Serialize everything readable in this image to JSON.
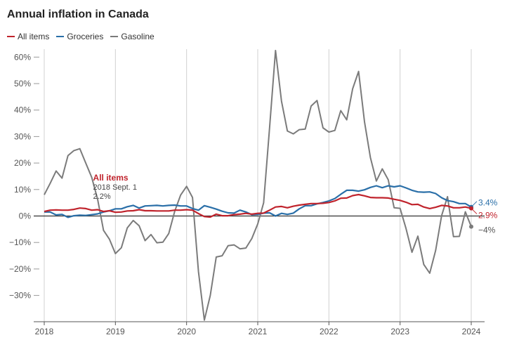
{
  "title": "Annual inflation in Canada",
  "legend": [
    {
      "label": "All items",
      "color": "#c0232c"
    },
    {
      "label": "Groceries",
      "color": "#2a6fa8"
    },
    {
      "label": "Gasoline",
      "color": "#7b7b7b"
    }
  ],
  "annotation": {
    "title": "All items",
    "date": "2018 Sept. 1",
    "value": "2.2%"
  },
  "end_labels": {
    "groceries": "3.4%",
    "all_items": "2.9%",
    "gasoline": "−4%"
  },
  "chart_data": {
    "type": "line",
    "title": "Annual inflation in Canada",
    "x_start": "2018-01",
    "x_end": "2024-01",
    "x_tick_labels": [
      "2018",
      "2019",
      "2020",
      "2021",
      "2022",
      "2023",
      "2024"
    ],
    "y_tick_values": [
      60,
      50,
      40,
      30,
      20,
      10,
      0,
      -10,
      -20,
      -30
    ],
    "y_tick_labels": [
      "60%",
      "50%",
      "40%",
      "30%",
      "20%",
      "10%",
      "0%",
      "−10%",
      "−20%",
      "−30%"
    ],
    "ylim": [
      -40,
      63
    ],
    "grid": "vertical gridlines at years, horizontal zero line",
    "legend_position": "top-left",
    "series": [
      {
        "name": "All items",
        "color": "#c0232c",
        "values": [
          1.7,
          2.2,
          2.3,
          2.2,
          2.2,
          2.5,
          3.0,
          2.8,
          2.2,
          2.4,
          1.7,
          2.0,
          1.4,
          1.5,
          1.9,
          2.0,
          2.4,
          2.0,
          2.0,
          1.9,
          1.9,
          1.9,
          2.2,
          2.2,
          2.4,
          2.2,
          0.9,
          -0.2,
          -0.4,
          0.7,
          0.1,
          0.1,
          0.5,
          0.7,
          1.0,
          0.7,
          1.0,
          1.1,
          2.2,
          3.4,
          3.6,
          3.1,
          3.7,
          4.1,
          4.4,
          4.7,
          4.7,
          4.8,
          5.1,
          5.7,
          6.7,
          6.8,
          7.7,
          8.1,
          7.6,
          7.0,
          6.9,
          6.9,
          6.8,
          6.3,
          5.9,
          5.2,
          4.3,
          4.4,
          3.4,
          2.8,
          3.3,
          4.0,
          3.8,
          3.1,
          3.1,
          3.4,
          2.9
        ]
      },
      {
        "name": "Groceries",
        "color": "#2a6fa8",
        "values": [
          1.5,
          1.5,
          0.4,
          0.6,
          -0.5,
          0.1,
          0.3,
          0.2,
          0.5,
          0.8,
          1.5,
          2.0,
          2.7,
          2.7,
          3.5,
          4.0,
          3.0,
          3.8,
          3.9,
          4.0,
          3.8,
          4.0,
          4.1,
          3.8,
          3.8,
          2.8,
          2.2,
          3.9,
          3.3,
          2.6,
          1.8,
          1.2,
          1.1,
          2.2,
          1.5,
          0.5,
          0.6,
          1.1,
          1.2,
          0.0,
          1.0,
          0.6,
          1.1,
          2.7,
          3.9,
          3.9,
          4.6,
          5.1,
          5.7,
          6.6,
          8.2,
          9.7,
          9.7,
          9.4,
          9.9,
          10.8,
          11.4,
          10.7,
          11.4,
          11.0,
          11.4,
          10.6,
          9.7,
          9.1,
          9.0,
          9.1,
          8.5,
          6.9,
          5.8,
          5.4,
          4.7,
          4.7,
          3.4
        ]
      },
      {
        "name": "Gasoline",
        "color": "#7b7b7b",
        "values": [
          8.0,
          12.3,
          17.0,
          14.3,
          22.8,
          24.7,
          25.4,
          20.0,
          14.6,
          6.3,
          -5.4,
          -8.8,
          -14.2,
          -12.0,
          -4.5,
          -1.7,
          -3.7,
          -9.3,
          -7.0,
          -10.1,
          -9.9,
          -6.6,
          1.8,
          7.9,
          11.2,
          7.0,
          -21.0,
          -39.3,
          -30.0,
          -15.5,
          -15.0,
          -11.2,
          -10.9,
          -12.4,
          -12.1,
          -8.5,
          -3.0,
          5.0,
          33.5,
          62.5,
          43.4,
          32.1,
          31.0,
          32.6,
          32.8,
          41.5,
          43.6,
          33.3,
          31.7,
          32.3,
          39.8,
          36.3,
          48.0,
          54.6,
          35.6,
          22.1,
          13.2,
          17.8,
          13.7,
          3.1,
          2.9,
          -4.7,
          -13.7,
          -7.6,
          -18.3,
          -21.6,
          -13.0,
          0.1,
          7.3,
          -7.8,
          -7.7,
          1.6,
          -4.0
        ]
      }
    ]
  }
}
